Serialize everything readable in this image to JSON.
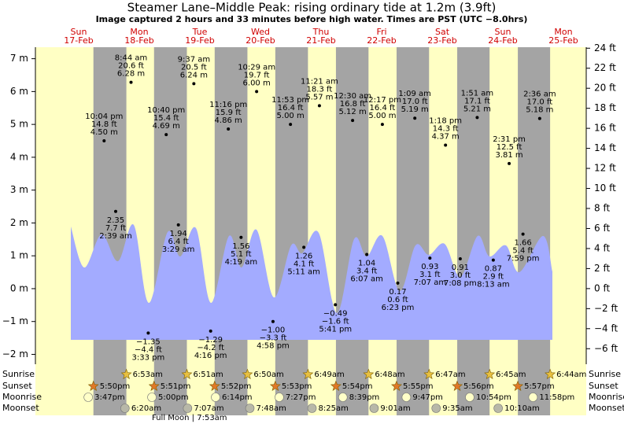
{
  "chart_data": {
    "type": "tide",
    "title": "Steamer Lane–Middle Peak: rising  ordinary tide at 1.2m (3.9ft)",
    "subtitle": "Image captured 2 hours and 33 minutes before high water. Times are PST (UTC −8.0hrs)",
    "ylim": [
      -2.3,
      7.35
    ],
    "yticks": [
      {
        "value": -2,
        "label": "−2 m"
      },
      {
        "value": -1,
        "label": "−1 m"
      },
      {
        "value": 0,
        "label": "0 m"
      },
      {
        "value": 1,
        "label": "1 m"
      },
      {
        "value": 2,
        "label": "2 m"
      },
      {
        "value": 3,
        "label": "3 m"
      },
      {
        "value": 4,
        "label": "4 m"
      },
      {
        "value": 5,
        "label": "5 m"
      },
      {
        "value": 6,
        "label": "6 m"
      },
      {
        "value": 7,
        "label": "7 m"
      }
    ],
    "y2lim": [
      -7.55,
      24.1
    ],
    "y2ticks": [
      {
        "value": -6,
        "label": "−6 ft"
      },
      {
        "value": -4,
        "label": "−4 ft"
      },
      {
        "value": -2,
        "label": "−2 ft"
      },
      {
        "value": 0,
        "label": "0 ft"
      },
      {
        "value": 2,
        "label": "2 ft"
      },
      {
        "value": 4,
        "label": "4 ft"
      },
      {
        "value": 6,
        "label": "6 ft"
      },
      {
        "value": 8,
        "label": "8 ft"
      },
      {
        "value": 10,
        "label": "10 ft"
      },
      {
        "value": 12,
        "label": "12 ft"
      },
      {
        "value": 14,
        "label": "14 ft"
      },
      {
        "value": 16,
        "label": "16 ft"
      },
      {
        "value": 18,
        "label": "18 ft"
      },
      {
        "value": 20,
        "label": "20 ft"
      },
      {
        "value": 22,
        "label": "22 ft"
      },
      {
        "value": 24,
        "label": "24 ft"
      }
    ],
    "row_labels": {
      "sunrise": "Sunrise",
      "sunset": "Sunset",
      "moonrise": "Moonrise",
      "moonset": "Moonset"
    },
    "days": [
      {
        "name": "Sun",
        "date": "17-Feb",
        "sunset": "5:50pm",
        "moonrise": "3:47pm",
        "tides": [
          {
            "time": "10:04 pm",
            "ft": 14.8,
            "ft_label": "14.8 ft",
            "m": 4.5,
            "m_label": "4.50 m"
          }
        ]
      },
      {
        "name": "Mon",
        "date": "18-Feb",
        "sunrise": "6:53am",
        "sunset": "5:51pm",
        "moonrise": "5:00pm",
        "moonset": "6:20am",
        "tides": [
          {
            "time": "2:39 am",
            "ft": 7.7,
            "ft_label": "7.7 ft",
            "m": 2.35,
            "m_label": "2.35"
          },
          {
            "time": "8:44 am",
            "ft": 20.6,
            "ft_label": "20.6 ft",
            "m": 6.28,
            "m_label": "6.28 m"
          },
          {
            "time": "3:33 pm",
            "ft": -4.4,
            "ft_label": "−4.4 ft",
            "m": -1.35,
            "m_label": "−1.35"
          },
          {
            "time": "10:40 pm",
            "ft": 15.4,
            "ft_label": "15.4 ft",
            "m": 4.69,
            "m_label": "4.69 m"
          }
        ]
      },
      {
        "name": "Tue",
        "date": "19-Feb",
        "sunrise": "6:51am",
        "sunset": "5:52pm",
        "moonrise": "6:14pm",
        "moonset": "7:07am",
        "full_moon": "Full Moon | 7:53am",
        "tides": [
          {
            "time": "3:29 am",
            "ft": 6.4,
            "ft_label": "6.4 ft",
            "m": 1.94,
            "m_label": "1.94"
          },
          {
            "time": "9:37 am",
            "ft": 20.5,
            "ft_label": "20.5 ft",
            "m": 6.24,
            "m_label": "6.24 m"
          },
          {
            "time": "4:16 pm",
            "ft": -4.2,
            "ft_label": "−4.2 ft",
            "m": -1.29,
            "m_label": "−1.29"
          },
          {
            "time": "11:16 pm",
            "ft": 15.9,
            "ft_label": "15.9 ft",
            "m": 4.86,
            "m_label": "4.86 m"
          }
        ]
      },
      {
        "name": "Wed",
        "date": "20-Feb",
        "sunrise": "6:50am",
        "sunset": "5:53pm",
        "moonrise": "7:27pm",
        "moonset": "7:48am",
        "tides": [
          {
            "time": "4:19 am",
            "ft": 5.1,
            "ft_label": "5.1 ft",
            "m": 1.56,
            "m_label": "1.56"
          },
          {
            "time": "10:29 am",
            "ft": 19.7,
            "ft_label": "19.7 ft",
            "m": 6.0,
            "m_label": "6.00 m"
          },
          {
            "time": "4:58 pm",
            "ft": -3.3,
            "ft_label": "−3.3 ft",
            "m": -1.0,
            "m_label": "−1.00"
          },
          {
            "time": "11:53 pm",
            "ft": 16.4,
            "ft_label": "16.4 ft",
            "m": 5.0,
            "m_label": "5.00 m"
          }
        ]
      },
      {
        "name": "Thu",
        "date": "21-Feb",
        "sunrise": "6:49am",
        "sunset": "5:54pm",
        "moonrise": "8:39pm",
        "moonset": "8:25am",
        "tides": [
          {
            "time": "5:11 am",
            "ft": 4.1,
            "ft_label": "4.1 ft",
            "m": 1.26,
            "m_label": "1.26"
          },
          {
            "time": "11:21 am",
            "ft": 18.3,
            "ft_label": "18.3 ft",
            "m": 5.57,
            "m_label": "5.57 m"
          },
          {
            "time": "5:41 pm",
            "ft": -1.6,
            "ft_label": "−1.6 ft",
            "m": -0.49,
            "m_label": "−0.49"
          }
        ]
      },
      {
        "name": "Fri",
        "date": "22-Feb",
        "sunrise": "6:48am",
        "sunset": "5:55pm",
        "moonrise": "9:47pm",
        "moonset": "9:01am",
        "tides": [
          {
            "time": "12:30 am",
            "ft": 16.8,
            "ft_label": "16.8 ft",
            "m": 5.12,
            "m_label": "5.12 m"
          },
          {
            "time": "6:07 am",
            "ft": 3.4,
            "ft_label": "3.4 ft",
            "m": 1.04,
            "m_label": "1.04"
          },
          {
            "time": "12:17 pm",
            "ft": 16.4,
            "ft_label": "16.4 ft",
            "m": 5.0,
            "m_label": "5.00 m"
          },
          {
            "time": "6:23 pm",
            "ft": 0.6,
            "ft_label": "0.6 ft",
            "m": 0.17,
            "m_label": "0.17"
          }
        ]
      },
      {
        "name": "Sat",
        "date": "23-Feb",
        "sunrise": "6:47am",
        "sunset": "5:56pm",
        "moonrise": "10:54pm",
        "moonset": "9:35am",
        "tides": [
          {
            "time": "1:09 am",
            "ft": 17.0,
            "ft_label": "17.0 ft",
            "m": 5.19,
            "m_label": "5.19 m"
          },
          {
            "time": "7:07 am",
            "ft": 3.1,
            "ft_label": "3.1 ft",
            "m": 0.93,
            "m_label": "0.93"
          },
          {
            "time": "1:18 pm",
            "ft": 14.3,
            "ft_label": "14.3 ft",
            "m": 4.37,
            "m_label": "4.37 m"
          },
          {
            "time": "7:08 pm",
            "ft": 3.0,
            "ft_label": "3.0 ft",
            "m": 0.91,
            "m_label": "0.91"
          }
        ]
      },
      {
        "name": "Sun",
        "date": "24-Feb",
        "sunrise": "6:45am",
        "sunset": "5:57pm",
        "moonrise": "11:58pm",
        "moonset": "10:10am",
        "tides": [
          {
            "time": "1:51 am",
            "ft": 17.1,
            "ft_label": "17.1 ft",
            "m": 5.21,
            "m_label": "5.21 m"
          },
          {
            "time": "8:13 am",
            "ft": 2.9,
            "ft_label": "2.9 ft",
            "m": 0.87,
            "m_label": "0.87"
          },
          {
            "time": "2:31 pm",
            "ft": 12.5,
            "ft_label": "12.5 ft",
            "m": 3.81,
            "m_label": "3.81 m"
          },
          {
            "time": "7:59 pm",
            "ft": 5.4,
            "ft_label": "5.4 ft",
            "m": 1.66,
            "m_label": "1.66"
          }
        ]
      },
      {
        "name": "Mon",
        "date": "25-Feb",
        "sunrise": "6:44am",
        "tides": [
          {
            "time": "2:36 am",
            "ft": 17.0,
            "ft_label": "17.0 ft",
            "m": 5.18,
            "m_label": "5.18 m"
          }
        ]
      }
    ]
  }
}
